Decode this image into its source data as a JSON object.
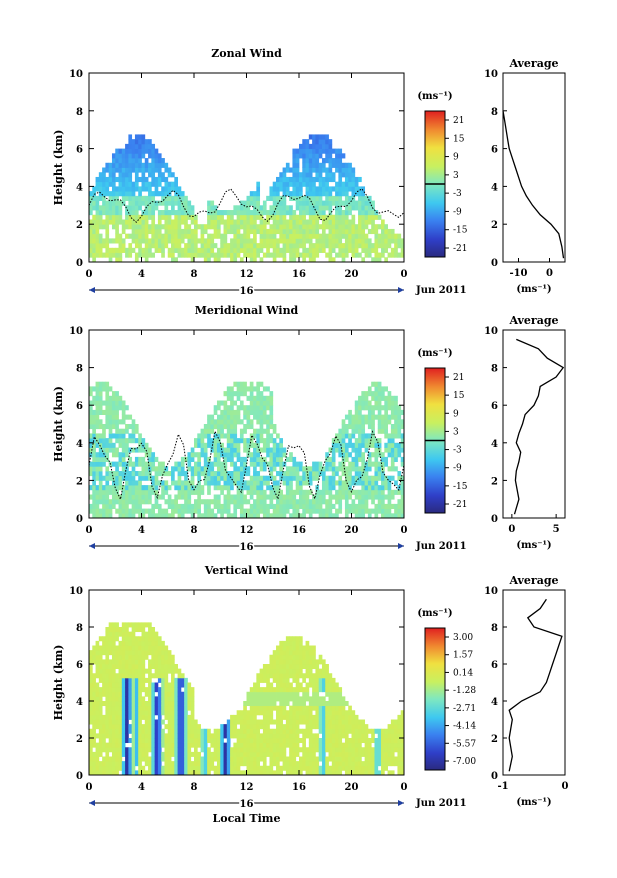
{
  "chart_data": [
    {
      "type": "heatmap",
      "title": "Zonal Wind",
      "xlabel": "",
      "ylabel": "Height (km)",
      "xlim": [
        0,
        24
      ],
      "ylim": [
        0,
        10
      ],
      "xticks": [
        "0",
        "4",
        "8",
        "12",
        "16",
        "20",
        "0"
      ],
      "yticks": [
        "0",
        "2",
        "4",
        "6",
        "8",
        "10"
      ],
      "date_bar": {
        "day": "16",
        "month": "Jun 2011"
      },
      "colorbar": {
        "unit": "(ms⁻¹)",
        "ticks": [
          "21",
          "15",
          "9",
          "3",
          "-3",
          "-9",
          "-15",
          "-21"
        ],
        "zero_line_value": 0
      },
      "field": "mostly westward (negative) aloft, weak near surface; echoes up to ~8 km",
      "average": {
        "title": "Average",
        "xlabel": "(ms⁻¹)",
        "xticks": [
          "-10",
          "0"
        ],
        "xlim": [
          -15,
          5
        ],
        "height_km": [
          0.2,
          0.8,
          1.5,
          2.0,
          2.5,
          3.0,
          3.5,
          4.0,
          4.5,
          5.0,
          5.5,
          6.0,
          6.5,
          7.0,
          7.5,
          8.0
        ],
        "wind": [
          4.5,
          4.0,
          3.0,
          0.5,
          -3.0,
          -5.5,
          -7.5,
          -9.0,
          -10.0,
          -11.0,
          -12.0,
          -13.0,
          -13.5,
          -14.0,
          -14.5,
          -15.0
        ]
      }
    },
    {
      "type": "heatmap",
      "title": "Meridional Wind",
      "xlabel": "",
      "ylabel": "Height (km)",
      "xlim": [
        0,
        24
      ],
      "ylim": [
        0,
        10
      ],
      "xticks": [
        "0",
        "4",
        "8",
        "12",
        "16",
        "20",
        "0"
      ],
      "yticks": [
        "0",
        "2",
        "4",
        "6",
        "8",
        "10"
      ],
      "date_bar": {
        "day": "16",
        "month": "Jun 2011"
      },
      "colorbar": {
        "unit": "(ms⁻¹)",
        "ticks": [
          "21",
          "15",
          "9",
          "3",
          "-3",
          "-9",
          "-15",
          "-21"
        ],
        "zero_line_value": 0
      },
      "field": "weak meridional wind, mostly near zero with light southward patches; echoes up to ~7 km",
      "average": {
        "title": "Average",
        "xlabel": "(ms⁻¹)",
        "xticks": [
          "0",
          "5"
        ],
        "xlim": [
          -1,
          6
        ],
        "height_km": [
          0.2,
          1.0,
          2.0,
          2.5,
          3.0,
          3.5,
          4.0,
          4.5,
          5.0,
          5.5,
          6.0,
          6.5,
          7.0,
          7.5,
          8.0,
          8.5,
          9.0,
          9.5
        ],
        "wind": [
          0.3,
          0.8,
          0.4,
          0.5,
          0.8,
          1.0,
          0.5,
          0.8,
          1.2,
          1.5,
          2.5,
          3.0,
          3.2,
          5.0,
          5.8,
          4.0,
          3.0,
          0.5
        ]
      }
    },
    {
      "type": "heatmap",
      "title": "Vertical Wind",
      "xlabel": "Local Time",
      "ylabel": "Height (km)",
      "xlim": [
        0,
        24
      ],
      "ylim": [
        0,
        10
      ],
      "xticks": [
        "0",
        "4",
        "8",
        "12",
        "16",
        "20",
        "0"
      ],
      "yticks": [
        "0",
        "2",
        "4",
        "6",
        "8",
        "10"
      ],
      "date_bar": {
        "day": "16",
        "month": "Jun 2011"
      },
      "colorbar": {
        "unit": "(ms⁻¹)",
        "ticks": [
          "3.00",
          "1.57",
          "0.14",
          "-1.28",
          "-2.71",
          "-4.14",
          "-5.57",
          "-7.00"
        ]
      },
      "field": "near-zero vertical wind with strong downward streaks near 3, 5, 7 and 10.5 h below ~5 km",
      "average": {
        "title": "Average",
        "xlabel": "(ms⁻¹)",
        "xticks": [
          "-1",
          "0"
        ],
        "xlim": [
          -1,
          0
        ],
        "height_km": [
          0.2,
          1.0,
          2.0,
          3.0,
          3.5,
          4.0,
          4.5,
          5.0,
          5.5,
          6.0,
          6.5,
          7.0,
          7.5,
          8.0,
          8.5,
          9.0,
          9.5
        ],
        "wind": [
          -0.9,
          -0.85,
          -0.9,
          -0.85,
          -0.9,
          -0.7,
          -0.4,
          -0.3,
          -0.25,
          -0.2,
          -0.15,
          -0.1,
          -0.05,
          -0.5,
          -0.6,
          -0.4,
          -0.3
        ]
      }
    }
  ]
}
